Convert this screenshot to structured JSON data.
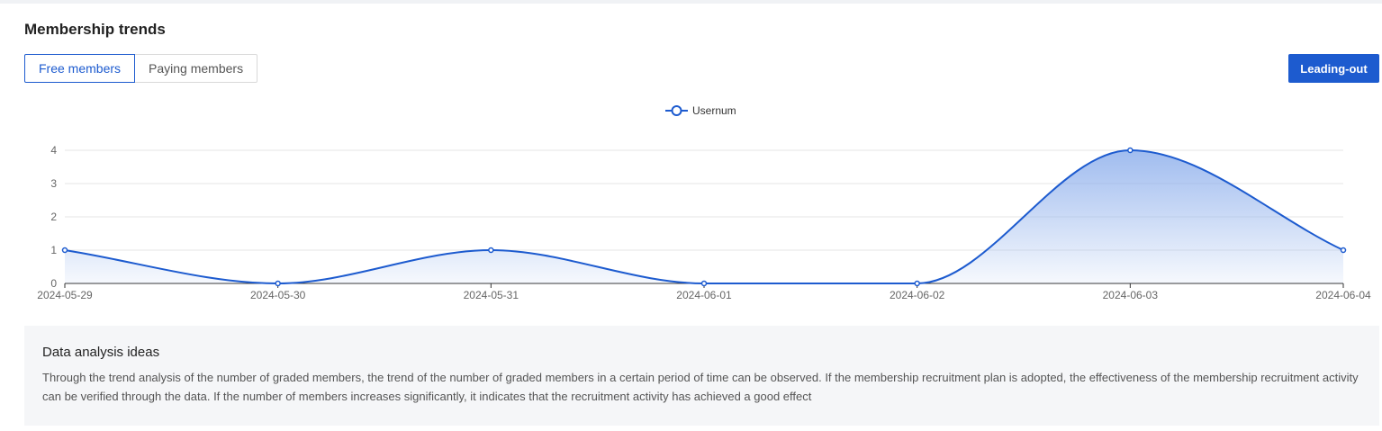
{
  "header": {
    "title": "Membership trends"
  },
  "tabs": [
    {
      "label": "Free members",
      "active": true
    },
    {
      "label": "Paying members",
      "active": false
    }
  ],
  "toolbar": {
    "export_label": "Leading-out"
  },
  "colors": {
    "accent": "#1d5bcf",
    "line": "#1d5bcf",
    "area_top": "#8fb0ec",
    "grid": "#e6e6e6"
  },
  "chart_data": {
    "type": "area",
    "x": [
      "2024-05-29",
      "2024-05-30",
      "2024-05-31",
      "2024-06-01",
      "2024-06-02",
      "2024-06-03",
      "2024-06-04"
    ],
    "series": [
      {
        "name": "Usernum",
        "values": [
          1,
          0,
          1,
          0,
          0,
          4,
          1
        ]
      }
    ],
    "yticks": [
      0,
      1,
      2,
      3,
      4
    ],
    "ylim": [
      0,
      4
    ],
    "grid": true,
    "legend_position": "top-center",
    "smooth": true,
    "markers": "hollow-circle"
  },
  "analysis": {
    "title": "Data analysis ideas",
    "body": "Through the trend analysis of the number of graded members, the trend of the number of graded members in a certain period of time can be observed. If the membership recruitment plan is adopted, the effectiveness of the membership recruitment activity can be verified through the data. If the number of members increases significantly, it indicates that the recruitment activity has achieved a good effect"
  }
}
